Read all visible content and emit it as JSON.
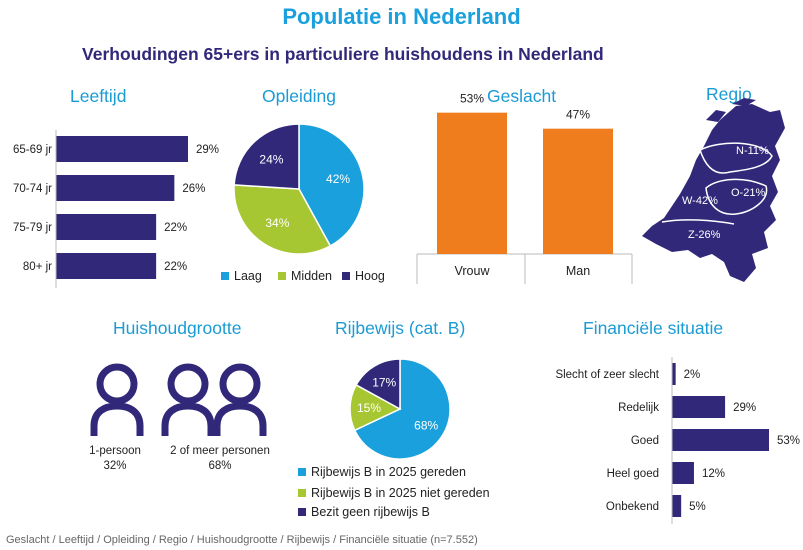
{
  "title": "Populatie in Nederland",
  "subtitle": "Verhoudingen 65+ers in particuliere huishoudens in Nederland",
  "colors": {
    "navy": "#32287a",
    "blue": "#1aa0dc",
    "green": "#a7c732",
    "orange": "#f07d1d"
  },
  "sections": {
    "leeftijd": "Leeftijd",
    "opleiding": "Opleiding",
    "geslacht": "Geslacht",
    "regio": "Regio",
    "huishoudgrootte": "Huishoudgrootte",
    "rijbewijs": "Rijbewijs (cat. B)",
    "financieel": "Financiële situatie"
  },
  "household": {
    "icon_one": "person-icon",
    "icon_more": "two-persons-icon",
    "one_label": "1-persoon",
    "one_value": "32%",
    "more_label": "2 of meer personen",
    "more_value": "68%"
  },
  "regio": {
    "icon": "netherlands-map-icon",
    "labels": [
      "N-11%",
      "O-21%",
      "W-42%",
      "Z-26%"
    ]
  },
  "footnote": "Geslacht / Leeftijd / Opleiding / Regio / Huishoudgrootte / Rijbewijs / Financiële situatie (n=7.552)",
  "chart_data": [
    {
      "id": "leeftijd",
      "type": "bar",
      "orientation": "horizontal",
      "categories": [
        "65-69 jr",
        "70-74 jr",
        "75-79 jr",
        "80+ jr"
      ],
      "values": [
        29,
        26,
        22,
        22
      ],
      "labels": [
        "29%",
        "26%",
        "22%",
        "22%"
      ],
      "xlim": [
        0,
        30
      ]
    },
    {
      "id": "opleiding",
      "type": "pie",
      "categories": [
        "Laag",
        "Midden",
        "Hoog"
      ],
      "values": [
        42,
        34,
        24
      ],
      "labels": [
        "42%",
        "34%",
        "24%"
      ],
      "colors": [
        "#1aa0dc",
        "#a7c732",
        "#32287a"
      ],
      "legend": "bottom"
    },
    {
      "id": "geslacht",
      "type": "bar",
      "orientation": "vertical",
      "categories": [
        "Vrouw",
        "Man"
      ],
      "values": [
        53,
        47
      ],
      "labels": [
        "53%",
        "47%"
      ],
      "ylim": [
        0,
        60
      ]
    },
    {
      "id": "rijbewijs",
      "type": "pie",
      "categories": [
        "Rijbewijs B in 2025 gereden",
        "Rijbewijs B in 2025 niet gereden",
        "Bezit geen rijbewijs B"
      ],
      "values": [
        68,
        15,
        17
      ],
      "labels": [
        "68%",
        "15%",
        "17%"
      ],
      "colors": [
        "#1aa0dc",
        "#a7c732",
        "#32287a"
      ],
      "legend": "bottom"
    },
    {
      "id": "financieel",
      "type": "bar",
      "orientation": "horizontal",
      "categories": [
        "Slecht of zeer slecht",
        "Redelijk",
        "Goed",
        "Heel goed",
        "Onbekend"
      ],
      "values": [
        2,
        29,
        53,
        12,
        5
      ],
      "labels": [
        "2%",
        "29%",
        "53%",
        "12%",
        "5%"
      ],
      "xlim": [
        0,
        53
      ]
    }
  ]
}
